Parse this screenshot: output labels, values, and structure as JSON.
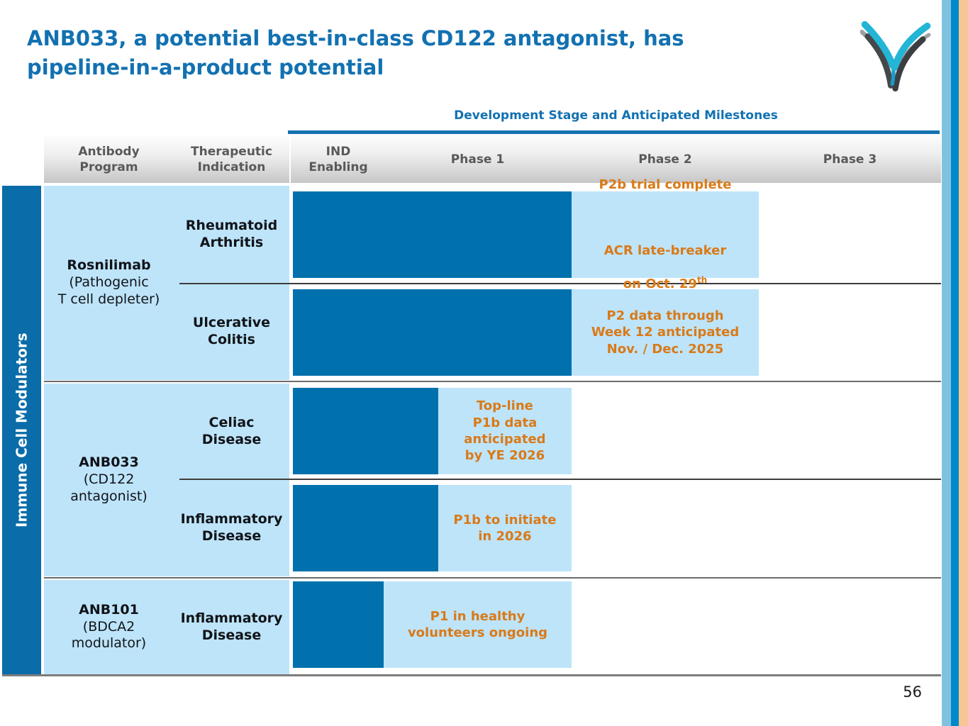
{
  "slide": {
    "title": "ANB033, a potential best-in-class CD122 antagonist, has\npipeline-in-a-product potential",
    "page_number": "56"
  },
  "colors": {
    "title_blue": "#1271B1",
    "bar_blue": "#0071AD",
    "left_strip_blue": "#0A6CA8",
    "light_blue": "#BEE4FA",
    "milestone_orange": "#D97A18",
    "column_header_gray": "#595959",
    "edge_stripe_light": "#7FC2E0",
    "edge_stripe_dark": "#0089C8",
    "edge_stripe_tan": "#F6C795"
  },
  "table": {
    "section_header": "Development Stage and Anticipated Milestones",
    "left_axis_label": "Immune Cell Modulators",
    "columns": [
      "Antibody\nProgram",
      "Therapeutic\nIndication",
      "IND\nEnabling",
      "Phase 1",
      "Phase 2",
      "Phase 3"
    ]
  },
  "chart_data": {
    "type": "bar",
    "subtype": "horizontal pipeline gantt",
    "title": "Development Stage and Anticipated Milestones",
    "stage_columns": [
      "IND Enabling",
      "Phase 1",
      "Phase 2",
      "Phase 3"
    ],
    "row_group": "Immune Cell Modulators",
    "bar_units": "stage axis: 0 = start of IND Enabling, 1 = start of Phase 1, 2 = start of Phase 2, 3 = start of Phase 3, 4 = end of Phase 3",
    "programs": [
      {
        "name": "Rosnilimab",
        "description": "(Pathogenic\nT cell depleter)"
      },
      {
        "name": "ANB033",
        "description": "(CD122\nantagonist)"
      },
      {
        "name": "ANB101",
        "description": "(BDCA2\nmodulator)"
      }
    ],
    "rows": [
      {
        "program": "Rosnilimab",
        "indication": "Rheumatoid\nArthritis",
        "bar": [
          0,
          2
        ],
        "milestone_box": [
          2,
          3
        ],
        "milestone_lines": [
          "P2b trial complete",
          "ACR late-breaker",
          "on Oct. 29"
        ],
        "milestone_sup": "th"
      },
      {
        "program": "Rosnilimab",
        "indication": "Ulcerative\nColitis",
        "bar": [
          0,
          2
        ],
        "milestone_box": [
          2,
          3
        ],
        "milestone": "P2 data through\nWeek 12 anticipated\nNov. / Dec. 2025"
      },
      {
        "program": "ANB033",
        "indication": "Celiac\nDisease",
        "bar": [
          0,
          1.29
        ],
        "milestone_box": [
          1.29,
          2
        ],
        "milestone": "Top-line\nP1b data\nanticipated\nby YE 2026"
      },
      {
        "program": "ANB033",
        "indication": "Inflammatory\nDisease",
        "bar": [
          0,
          1.29
        ],
        "milestone_box": [
          1.29,
          2
        ],
        "milestone": "P1b to initiate\nin 2026"
      },
      {
        "program": "ANB101",
        "indication": "Inflammatory\nDisease",
        "bar": [
          0,
          1
        ],
        "milestone_box": [
          1,
          2
        ],
        "milestone": "P1 in healthy\nvolunteers ongoing"
      }
    ]
  }
}
